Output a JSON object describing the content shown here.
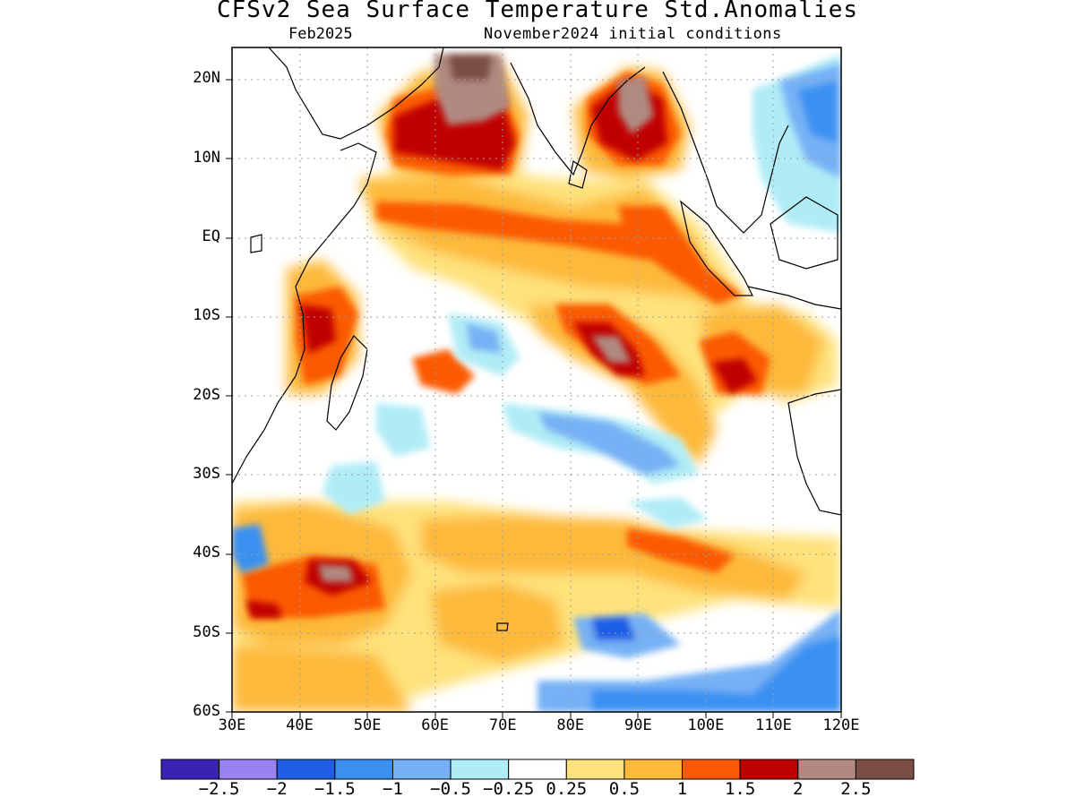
{
  "header": {
    "title": "CFSv2 Sea Surface Temperature Std.Anomalies",
    "forecast_month": "Feb2025",
    "initial_conditions": "November2024 initial conditions"
  },
  "axes": {
    "lat_labels": [
      "20N",
      "10N",
      "EQ",
      "10S",
      "20S",
      "30S",
      "40S",
      "50S",
      "60S"
    ],
    "lon_labels": [
      "30E",
      "40E",
      "50E",
      "60E",
      "70E",
      "80E",
      "90E",
      "100E",
      "110E",
      "120E"
    ],
    "lat_range": [
      -60,
      24
    ],
    "lon_range": [
      30,
      120
    ]
  },
  "colorbar": {
    "levels": [
      "-2.5",
      "-2",
      "-1.5",
      "-1",
      "-0.5",
      "-0.25",
      "0.25",
      "0.5",
      "1",
      "1.5",
      "2",
      "2.5"
    ],
    "colors": [
      "#3a22b2",
      "#9b82f2",
      "#1f5fe6",
      "#3b91f2",
      "#76b1f5",
      "#b0ecf6",
      "#ffffff",
      "#fee27c",
      "#fdb93a",
      "#fb5a05",
      "#c00000",
      "#b08a80",
      "#7a4e44"
    ]
  },
  "colors": {
    "land_outline": "#000000",
    "grid": "#a0a0a0"
  }
}
